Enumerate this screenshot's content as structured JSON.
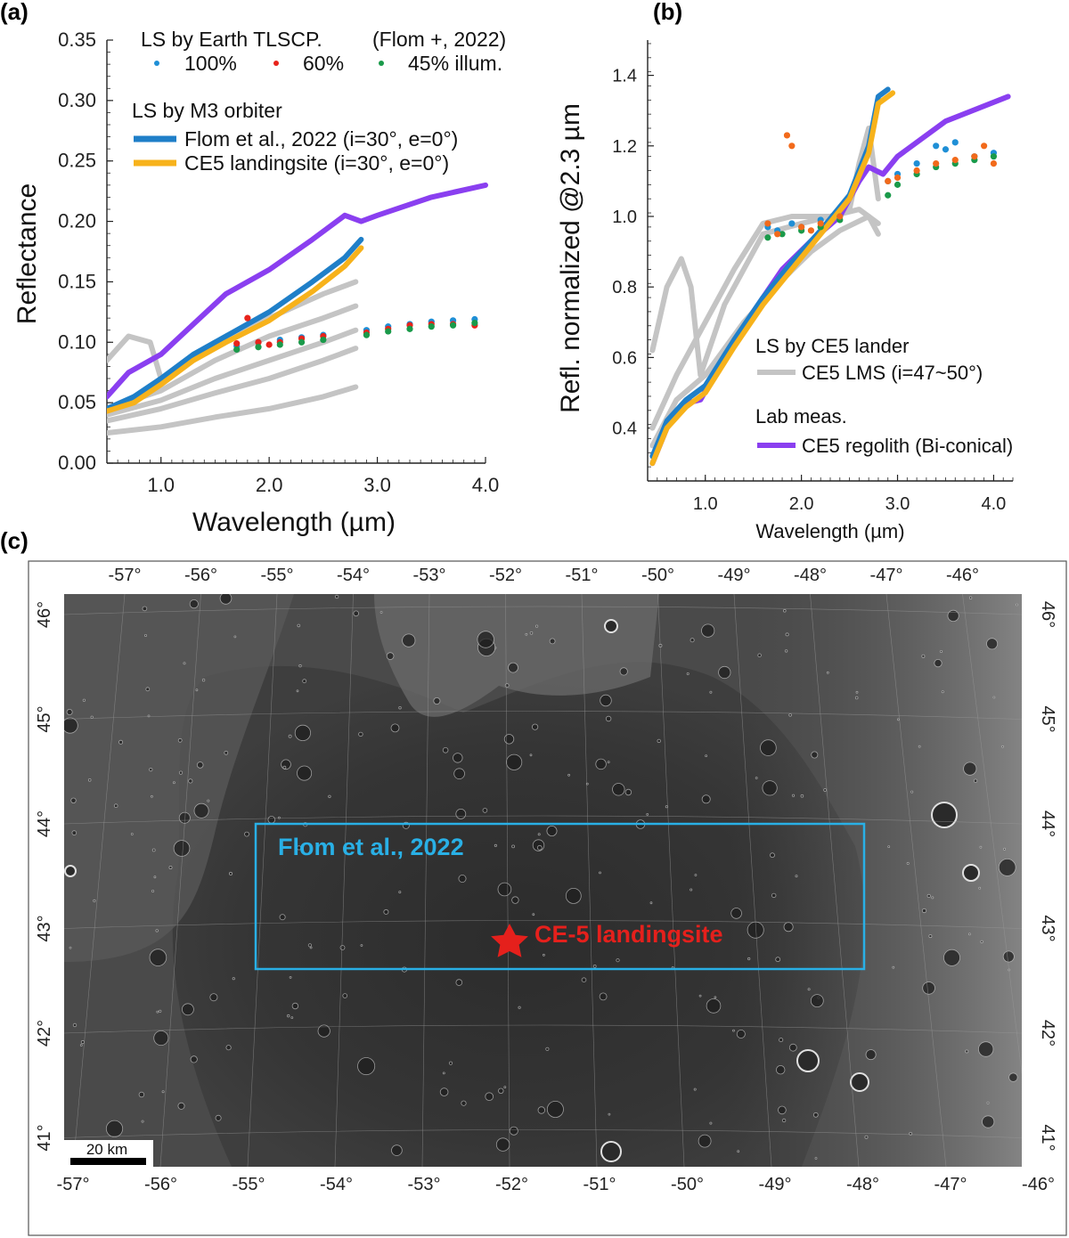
{
  "figure": {
    "panel_a_label": "(a)",
    "panel_b_label": "(b)",
    "panel_c_label": "(c)"
  },
  "colors": {
    "m3_flom": "#1f7fc8",
    "m3_ce5": "#f7b21b",
    "lab_regolith": "#8a3ff0",
    "lms_gray": "#c4c4c4",
    "tlscp_100": "#1f8fd6",
    "tlscp_60": "#e8231b",
    "tlscp_45": "#1a9a4a",
    "tlscp_orange": "#f26a1b",
    "map_box": "#29b0e6",
    "landing_star": "#e5201c"
  },
  "chart_data": [
    {
      "id": "a",
      "type": "line",
      "xlabel": "Wavelength (µm)",
      "ylabel": "Reflectance",
      "xlim": [
        0.5,
        4.0
      ],
      "ylim": [
        0.0,
        0.35
      ],
      "xticks": [
        1.0,
        2.0,
        3.0,
        4.0
      ],
      "xtick_labels": [
        "1.0",
        "2.0",
        "3.0",
        "4.0"
      ],
      "yticks": [
        0.0,
        0.05,
        0.1,
        0.15,
        0.2,
        0.25,
        0.3,
        0.35
      ],
      "ytick_labels": [
        "0.00",
        "0.05",
        "0.10",
        "0.15",
        "0.20",
        "0.25",
        "0.30",
        "0.35"
      ],
      "legend": {
        "tlscp_title": "LS by Earth TLSCP.",
        "tlscp_ref": "(Flom +, 2022)",
        "tlscp_items": [
          "100%",
          "60%",
          "45% illum."
        ],
        "m3_title": "LS by M3 orbiter",
        "m3_items": [
          "Flom et al., 2022 (i=30°, e=0°)",
          "CE5 landingsite (i=30°, e=0°)"
        ]
      },
      "series": [
        {
          "name": "CE5 regolith (Bi-conical)",
          "x": [
            0.5,
            0.7,
            0.9,
            1.0,
            1.3,
            1.6,
            2.0,
            2.4,
            2.7,
            2.85,
            3.0,
            3.5,
            4.0
          ],
          "y": [
            0.055,
            0.075,
            0.085,
            0.09,
            0.115,
            0.14,
            0.16,
            0.185,
            0.205,
            0.2,
            0.205,
            0.22,
            0.23
          ]
        },
        {
          "name": "Flom et al., 2022 (i=30°, e=0°)",
          "x": [
            0.5,
            0.75,
            1.0,
            1.3,
            1.6,
            2.0,
            2.4,
            2.7,
            2.85
          ],
          "y": [
            0.045,
            0.055,
            0.07,
            0.09,
            0.105,
            0.125,
            0.15,
            0.17,
            0.185
          ]
        },
        {
          "name": "CE5 landingsite (i=30°, e=0°)",
          "x": [
            0.5,
            0.75,
            1.0,
            1.3,
            1.6,
            2.0,
            2.4,
            2.7,
            2.85
          ],
          "y": [
            0.043,
            0.05,
            0.065,
            0.085,
            0.1,
            0.118,
            0.142,
            0.163,
            0.178
          ]
        },
        {
          "name": "gray 1",
          "x": [
            0.5,
            0.7,
            0.9,
            1.0,
            1.5,
            2.0,
            2.5,
            2.8
          ],
          "y": [
            0.085,
            0.105,
            0.1,
            0.07,
            0.1,
            0.12,
            0.14,
            0.15
          ]
        },
        {
          "name": "gray 2",
          "x": [
            0.5,
            1.0,
            1.5,
            2.0,
            2.5,
            2.8
          ],
          "y": [
            0.045,
            0.06,
            0.085,
            0.105,
            0.12,
            0.13
          ]
        },
        {
          "name": "gray 3",
          "x": [
            0.5,
            1.0,
            1.5,
            2.0,
            2.5,
            2.8
          ],
          "y": [
            0.04,
            0.052,
            0.07,
            0.085,
            0.1,
            0.11
          ]
        },
        {
          "name": "gray 4",
          "x": [
            0.5,
            1.0,
            1.5,
            2.0,
            2.5,
            2.8
          ],
          "y": [
            0.035,
            0.045,
            0.058,
            0.07,
            0.085,
            0.095
          ]
        },
        {
          "name": "gray 5",
          "x": [
            0.5,
            1.0,
            1.5,
            2.0,
            2.5,
            2.8
          ],
          "y": [
            0.025,
            0.03,
            0.038,
            0.045,
            0.055,
            0.063
          ]
        },
        {
          "name": "100%",
          "style": "scatter",
          "x": [
            1.7,
            1.9,
            2.1,
            2.3,
            2.5,
            2.9,
            3.1,
            3.3,
            3.5,
            3.7,
            3.9
          ],
          "y": [
            0.097,
            0.1,
            0.102,
            0.104,
            0.106,
            0.11,
            0.113,
            0.115,
            0.117,
            0.118,
            0.119
          ]
        },
        {
          "name": "60%",
          "style": "scatter",
          "x": [
            1.7,
            1.8,
            1.9,
            2.0,
            2.1,
            2.3,
            2.5,
            2.9,
            3.1,
            3.3,
            3.5,
            3.7,
            3.9
          ],
          "y": [
            0.099,
            0.12,
            0.1,
            0.098,
            0.1,
            0.103,
            0.105,
            0.108,
            0.111,
            0.114,
            0.115,
            0.115,
            0.114
          ]
        },
        {
          "name": "45% illum.",
          "style": "scatter",
          "x": [
            1.7,
            1.9,
            2.1,
            2.3,
            2.5,
            2.9,
            3.1,
            3.3,
            3.5,
            3.7,
            3.9
          ],
          "y": [
            0.094,
            0.096,
            0.098,
            0.1,
            0.102,
            0.106,
            0.109,
            0.111,
            0.113,
            0.114,
            0.116
          ]
        }
      ]
    },
    {
      "id": "b",
      "type": "line",
      "xlabel": "Wavelength (µm)",
      "ylabel": "Refl. normalized @2.3 µm",
      "xlim": [
        0.4,
        4.2
      ],
      "ylim": [
        0.25,
        1.5
      ],
      "xticks": [
        1.0,
        2.0,
        3.0,
        4.0
      ],
      "xtick_labels": [
        "1.0",
        "2.0",
        "3.0",
        "4.0"
      ],
      "yticks": [
        0.4,
        0.6,
        0.8,
        1.0,
        1.2,
        1.4
      ],
      "ytick_labels": [
        "0.4",
        "0.6",
        "0.8",
        "1.0",
        "1.2",
        "1.4"
      ],
      "legend": {
        "lander_title": "LS by CE5 lander",
        "lander_item": "CE5 LMS (i=47~50°)",
        "lab_title": "Lab meas.",
        "lab_item": "CE5 regolith (Bi-conical)"
      },
      "series": [
        {
          "name": "CE5 regolith (Bi-conical)",
          "x": [
            0.45,
            0.6,
            0.8,
            0.95,
            1.2,
            1.5,
            1.8,
            2.1,
            2.4,
            2.6,
            2.7,
            2.85,
            3.0,
            3.5,
            4.15
          ],
          "y": [
            0.3,
            0.4,
            0.47,
            0.48,
            0.6,
            0.73,
            0.85,
            0.93,
            1.0,
            1.1,
            1.14,
            1.12,
            1.17,
            1.27,
            1.34
          ]
        },
        {
          "name": "Flom et al., 2022 (i=30°, e=0°)",
          "x": [
            0.45,
            0.6,
            0.8,
            1.0,
            1.3,
            1.6,
            1.9,
            2.2,
            2.5,
            2.7,
            2.8,
            2.9
          ],
          "y": [
            0.32,
            0.42,
            0.48,
            0.52,
            0.65,
            0.77,
            0.87,
            0.96,
            1.06,
            1.2,
            1.34,
            1.36
          ]
        },
        {
          "name": "CE5 landingsite (i=30°, e=0°)",
          "x": [
            0.45,
            0.6,
            0.8,
            1.0,
            1.3,
            1.6,
            1.9,
            2.2,
            2.5,
            2.7,
            2.8,
            2.95
          ],
          "y": [
            0.3,
            0.4,
            0.46,
            0.5,
            0.63,
            0.75,
            0.85,
            0.95,
            1.05,
            1.18,
            1.32,
            1.35
          ]
        },
        {
          "name": "CE5 LMS (i=47~50°) 1",
          "x": [
            0.45,
            0.6,
            0.75,
            0.85,
            0.95,
            1.2,
            1.6,
            2.0,
            2.3,
            2.5,
            2.6,
            2.7,
            2.8
          ],
          "y": [
            0.62,
            0.8,
            0.88,
            0.8,
            0.55,
            0.75,
            0.95,
            0.98,
            1.0,
            1.02,
            1.15,
            1.25,
            1.05
          ]
        },
        {
          "name": "CE5 LMS (i=47~50°) 2",
          "x": [
            0.45,
            0.7,
            1.0,
            1.3,
            1.6,
            1.9,
            2.3,
            2.6,
            2.8
          ],
          "y": [
            0.4,
            0.55,
            0.7,
            0.85,
            0.98,
            1.0,
            1.0,
            1.02,
            0.98
          ]
        },
        {
          "name": "CE5 LMS (i=47~50°) 3",
          "x": [
            0.45,
            0.7,
            1.0,
            1.4,
            1.8,
            2.1,
            2.4,
            2.7,
            2.8
          ],
          "y": [
            0.35,
            0.48,
            0.55,
            0.7,
            0.82,
            0.9,
            0.96,
            1.0,
            0.95
          ]
        },
        {
          "name": "100%",
          "style": "scatter",
          "x": [
            1.65,
            1.75,
            1.9,
            2.0,
            2.2,
            2.4,
            2.9,
            3.0,
            3.2,
            3.4,
            3.5,
            3.6,
            3.8,
            4.0
          ],
          "y": [
            0.97,
            0.96,
            0.98,
            0.97,
            0.99,
            1.0,
            1.1,
            1.12,
            1.15,
            1.2,
            1.19,
            1.21,
            1.17,
            1.18
          ]
        },
        {
          "name": "45% illum.",
          "style": "scatter",
          "x": [
            1.65,
            1.8,
            2.0,
            2.2,
            2.4,
            2.9,
            3.0,
            3.2,
            3.4,
            3.6,
            3.8,
            4.0
          ],
          "y": [
            0.94,
            0.95,
            0.96,
            0.97,
            0.99,
            1.06,
            1.09,
            1.12,
            1.14,
            1.15,
            1.16,
            1.17
          ]
        },
        {
          "name": "60%",
          "style": "scatter",
          "x": [
            1.65,
            1.75,
            1.85,
            1.9,
            2.0,
            2.1,
            2.2,
            2.4,
            2.9,
            3.0,
            3.2,
            3.4,
            3.6,
            3.8,
            3.9,
            4.0
          ],
          "y": [
            0.98,
            0.95,
            1.23,
            1.2,
            0.97,
            0.96,
            0.98,
            1.0,
            1.1,
            1.11,
            1.13,
            1.15,
            1.16,
            1.17,
            1.2,
            1.15
          ]
        }
      ]
    }
  ],
  "map": {
    "lon_labels_top": [
      "-57°",
      "-56°",
      "-55°",
      "-54°",
      "-53°",
      "-52°",
      "-51°",
      "-50°",
      "-49°",
      "-48°",
      "-47°",
      "-46°"
    ],
    "lon_labels_bottom": [
      "-57°",
      "-56°",
      "-55°",
      "-54°",
      "-53°",
      "-52°",
      "-51°",
      "-50°",
      "-49°",
      "-48°",
      "-47°",
      "-46°"
    ],
    "lat_labels": [
      "46°",
      "45°",
      "44°",
      "43°",
      "42°",
      "41°"
    ],
    "box_label": "Flom et al., 2022",
    "site_label": "CE-5 landingsite",
    "scale_label": "20 km"
  }
}
